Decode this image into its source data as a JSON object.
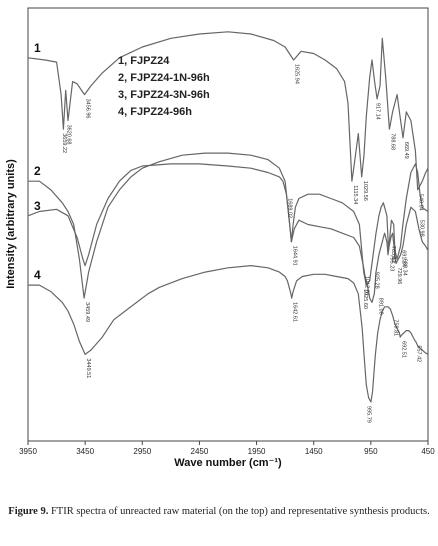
{
  "caption": {
    "label": "Figure 9.",
    "text": "FTIR spectra of unreacted raw material (on the top) and representative synthesis products."
  },
  "chart_data": {
    "type": "line",
    "xlabel": "Wave number (cm⁻¹)",
    "ylabel": "Intensity (arbitrary units)",
    "xlim": [
      3950,
      450
    ],
    "x_reversed": true,
    "x_ticks": [
      3950,
      3450,
      2950,
      2450,
      1950,
      1450,
      950,
      450
    ],
    "y_ticks": [],
    "grid": false,
    "legend_position": "top-center",
    "legend": [
      "1, FJPZ24",
      "2, FJPZ24-1N-96h",
      "3, FJPZ24-3N-96h",
      "4, FJPZ24-96h"
    ],
    "series": [
      {
        "name": "1",
        "color": "#666666",
        "x": [
          3950,
          3800,
          3700,
          3660,
          3640,
          3620,
          3600,
          3560,
          3520,
          3456,
          3400,
          3300,
          3150,
          2950,
          2700,
          2450,
          2200,
          2000,
          1800,
          1700,
          1626,
          1560,
          1450,
          1350,
          1250,
          1180,
          1150,
          1116,
          1090,
          1060,
          1030,
          1010,
          990,
          960,
          940,
          917,
          895,
          870,
          850,
          820,
          788,
          760,
          720,
          690,
          669,
          640,
          600,
          560,
          540,
          500,
          470,
          450
        ],
        "y": [
          0.885,
          0.88,
          0.875,
          0.8,
          0.72,
          0.81,
          0.74,
          0.83,
          0.825,
          0.8,
          0.82,
          0.85,
          0.885,
          0.91,
          0.93,
          0.94,
          0.945,
          0.94,
          0.925,
          0.91,
          0.88,
          0.9,
          0.895,
          0.88,
          0.86,
          0.83,
          0.78,
          0.6,
          0.65,
          0.71,
          0.61,
          0.66,
          0.75,
          0.84,
          0.88,
          0.83,
          0.79,
          0.82,
          0.93,
          0.84,
          0.72,
          0.76,
          0.8,
          0.74,
          0.7,
          0.76,
          0.74,
          0.67,
          0.58,
          0.6,
          0.62,
          0.63
        ]
      },
      {
        "name": "2",
        "color": "#666666",
        "x": [
          3950,
          3850,
          3750,
          3650,
          3600,
          3550,
          3500,
          3459,
          3420,
          3350,
          3250,
          3150,
          3050,
          2950,
          2800,
          2600,
          2400,
          2200,
          2000,
          1850,
          1750,
          1700,
          1660,
          1645,
          1630,
          1610,
          1580,
          1500,
          1400,
          1300,
          1200,
          1100,
          1050,
          1013,
          990,
          960,
          930,
          905,
          880,
          860,
          840,
          810,
          795,
          770,
          750,
          740,
          720,
          700,
          691,
          670,
          640,
          600,
          560,
          540,
          520,
          500,
          480,
          450
        ],
        "y": [
          0.6,
          0.6,
          0.58,
          0.55,
          0.53,
          0.5,
          0.42,
          0.33,
          0.39,
          0.46,
          0.54,
          0.58,
          0.61,
          0.63,
          0.645,
          0.66,
          0.665,
          0.665,
          0.66,
          0.65,
          0.63,
          0.6,
          0.5,
          0.46,
          0.5,
          0.54,
          0.56,
          0.57,
          0.57,
          0.56,
          0.55,
          0.53,
          0.5,
          0.39,
          0.36,
          0.37,
          0.43,
          0.48,
          0.52,
          0.54,
          0.55,
          0.52,
          0.44,
          0.51,
          0.5,
          0.44,
          0.42,
          0.44,
          0.45,
          0.5,
          0.56,
          0.62,
          0.64,
          0.62,
          0.57,
          0.54,
          0.535,
          0.53
        ]
      },
      {
        "name": "3",
        "color": "#666666",
        "x": [
          3950,
          3850,
          3700,
          3600,
          3520,
          3470,
          3450,
          3420,
          3350,
          3250,
          3150,
          3050,
          2950,
          2700,
          2450,
          2200,
          2000,
          1850,
          1750,
          1720,
          1689,
          1660,
          1645,
          1620,
          1580,
          1500,
          1400,
          1300,
          1200,
          1100,
          1050,
          1013,
          1000,
          980,
          960,
          940,
          920,
          905,
          880,
          860,
          840,
          830,
          810,
          800,
          790,
          775,
          760,
          740,
          729,
          710,
          690,
          670,
          640,
          600,
          560,
          530,
          500,
          470,
          450
        ],
        "y": [
          0.52,
          0.53,
          0.535,
          0.52,
          0.47,
          0.42,
          0.405,
          0.43,
          0.5,
          0.56,
          0.6,
          0.625,
          0.635,
          0.64,
          0.64,
          0.635,
          0.63,
          0.62,
          0.61,
          0.6,
          0.57,
          0.5,
          0.46,
          0.49,
          0.51,
          0.5,
          0.495,
          0.49,
          0.48,
          0.47,
          0.45,
          0.4,
          0.38,
          0.36,
          0.33,
          0.32,
          0.34,
          0.39,
          0.43,
          0.45,
          0.47,
          0.48,
          0.46,
          0.43,
          0.45,
          0.47,
          0.48,
          0.43,
          0.41,
          0.42,
          0.43,
          0.45,
          0.5,
          0.54,
          0.53,
          0.49,
          0.46,
          0.45,
          0.44
        ]
      },
      {
        "name": "4",
        "color": "#666666",
        "x": [
          3950,
          3850,
          3750,
          3650,
          3600,
          3550,
          3500,
          3450,
          3400,
          3300,
          3200,
          3100,
          3000,
          2900,
          2800,
          2600,
          2400,
          2200,
          2000,
          1850,
          1750,
          1700,
          1680,
          1650,
          1643,
          1630,
          1600,
          1550,
          1450,
          1350,
          1250,
          1150,
          1100,
          1060,
          1026,
          1010,
          990,
          970,
          950,
          935,
          925,
          910,
          890,
          870,
          850,
          830,
          800,
          780,
          760,
          740,
          720,
          700,
          693,
          680,
          660,
          640,
          620,
          600,
          580,
          560,
          558,
          540,
          520,
          500,
          480,
          450
        ],
        "y": [
          0.36,
          0.36,
          0.345,
          0.32,
          0.3,
          0.27,
          0.23,
          0.2,
          0.21,
          0.24,
          0.28,
          0.3,
          0.32,
          0.34,
          0.355,
          0.375,
          0.39,
          0.4,
          0.405,
          0.4,
          0.39,
          0.38,
          0.37,
          0.34,
          0.33,
          0.345,
          0.37,
          0.38,
          0.385,
          0.385,
          0.38,
          0.375,
          0.365,
          0.34,
          0.26,
          0.2,
          0.13,
          0.1,
          0.09,
          0.115,
          0.15,
          0.2,
          0.25,
          0.28,
          0.3,
          0.31,
          0.31,
          0.305,
          0.29,
          0.27,
          0.26,
          0.25,
          0.24,
          0.245,
          0.25,
          0.255,
          0.255,
          0.25,
          0.24,
          0.23,
          0.23,
          0.22,
          0.215,
          0.21,
          0.205,
          0.2
        ]
      }
    ],
    "peak_labels": [
      {
        "series": "1",
        "x": 3659.22,
        "y": 0.72,
        "text": "3659.22"
      },
      {
        "series": "1",
        "x": 3620.68,
        "y": 0.74,
        "text": "3620.68"
      },
      {
        "series": "1",
        "x": 3456.96,
        "y": 0.8,
        "text": "3456.96"
      },
      {
        "series": "1",
        "x": 1625.94,
        "y": 0.88,
        "text": "1625.94"
      },
      {
        "series": "1",
        "x": 1115.34,
        "y": 0.6,
        "text": "1115.34"
      },
      {
        "series": "1",
        "x": 1029.56,
        "y": 0.61,
        "text": "1029.56"
      },
      {
        "series": "1",
        "x": 917.14,
        "y": 0.79,
        "text": "917.14"
      },
      {
        "series": "1",
        "x": 788.68,
        "y": 0.72,
        "text": "788.68"
      },
      {
        "series": "1",
        "x": 669.49,
        "y": 0.7,
        "text": "669.49"
      },
      {
        "series": "1",
        "x": 540.04,
        "y": 0.58,
        "text": "540.04"
      },
      {
        "series": "2",
        "x": 3459.49,
        "y": 0.33,
        "text": "3459.49"
      },
      {
        "series": "2",
        "x": 1644.91,
        "y": 0.46,
        "text": "1644.91"
      },
      {
        "series": "2",
        "x": 1012.91,
        "y": 0.39,
        "text": "1012.91"
      },
      {
        "series": "2",
        "x": 795.23,
        "y": 0.44,
        "text": "795.23"
      },
      {
        "series": "2",
        "x": 691.24,
        "y": 0.45,
        "text": "691.24"
      },
      {
        "series": "2",
        "x": 530.98,
        "y": 0.52,
        "text": "530.98"
      },
      {
        "series": "3",
        "x": 1689.02,
        "y": 0.57,
        "text": "1689.02"
      },
      {
        "series": "3",
        "x": 1025.6,
        "y": 0.36,
        "text": "1025.60"
      },
      {
        "series": "3",
        "x": 925.28,
        "y": 0.4,
        "text": "925.28"
      },
      {
        "series": "3",
        "x": 783.83,
        "y": 0.46,
        "text": "783.83"
      },
      {
        "series": "3",
        "x": 729.96,
        "y": 0.41,
        "text": "729.96"
      },
      {
        "series": "3",
        "x": 680.34,
        "y": 0.43,
        "text": "680.34"
      },
      {
        "series": "3",
        "x": 891.08,
        "y": 0.34,
        "text": "891.08"
      },
      {
        "series": "4",
        "x": 3449.51,
        "y": 0.2,
        "text": "3449.51"
      },
      {
        "series": "4",
        "x": 1642.61,
        "y": 0.33,
        "text": "1642.61"
      },
      {
        "series": "4",
        "x": 995.79,
        "y": 0.09,
        "text": "995.79"
      },
      {
        "series": "4",
        "x": 759.81,
        "y": 0.29,
        "text": "759.81"
      },
      {
        "series": "4",
        "x": 692.51,
        "y": 0.24,
        "text": "692.51"
      },
      {
        "series": "4",
        "x": 557.42,
        "y": 0.23,
        "text": "557.42"
      }
    ]
  }
}
